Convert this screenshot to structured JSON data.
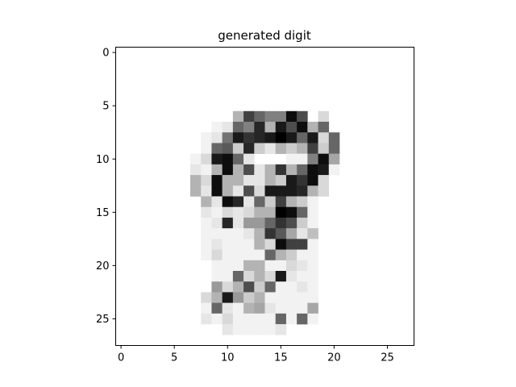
{
  "chart_data": {
    "type": "heatmap",
    "title": "generated digit",
    "xlabel": "",
    "ylabel": "",
    "colormap": "Greys",
    "value_range": [
      0,
      1
    ],
    "xlim": [
      -0.5,
      27.5
    ],
    "ylim": [
      27.5,
      -0.5
    ],
    "xticks": [
      0,
      5,
      10,
      15,
      20,
      25
    ],
    "yticks": [
      0,
      5,
      10,
      15,
      20,
      25
    ],
    "xtick_labels": [
      "0",
      "5",
      "10",
      "15",
      "20",
      "25"
    ],
    "ytick_labels": [
      "0",
      "5",
      "10",
      "15",
      "20",
      "25"
    ],
    "grid": false,
    "note_cells": "sparse matrix: each cell is [row, col, intensity]; all cells not listed are 0 (white)",
    "cells": [
      [
        6,
        11,
        0.3
      ],
      [
        6,
        12,
        0.75
      ],
      [
        6,
        13,
        0.6
      ],
      [
        6,
        14,
        0.5
      ],
      [
        6,
        15,
        0.5
      ],
      [
        6,
        16,
        0.95
      ],
      [
        6,
        17,
        0.7
      ],
      [
        6,
        19,
        0.15
      ],
      [
        7,
        9,
        0.05
      ],
      [
        7,
        10,
        0.1
      ],
      [
        7,
        11,
        0.6
      ],
      [
        7,
        12,
        0.5
      ],
      [
        7,
        13,
        0.85
      ],
      [
        7,
        14,
        0.3
      ],
      [
        7,
        15,
        0.9
      ],
      [
        7,
        16,
        0.7
      ],
      [
        7,
        17,
        0.95
      ],
      [
        7,
        18,
        0.3
      ],
      [
        7,
        19,
        0.6
      ],
      [
        8,
        8,
        0.05
      ],
      [
        8,
        9,
        0.1
      ],
      [
        8,
        10,
        0.55
      ],
      [
        8,
        11,
        0.9
      ],
      [
        8,
        12,
        0.8
      ],
      [
        8,
        13,
        0.85
      ],
      [
        8,
        14,
        0.9
      ],
      [
        8,
        15,
        1.0
      ],
      [
        8,
        16,
        0.9
      ],
      [
        8,
        17,
        0.6
      ],
      [
        8,
        18,
        0.9
      ],
      [
        8,
        19,
        0.15
      ],
      [
        8,
        20,
        0.6
      ],
      [
        9,
        8,
        0.05
      ],
      [
        9,
        9,
        0.6
      ],
      [
        9,
        10,
        0.65
      ],
      [
        9,
        11,
        0.2
      ],
      [
        9,
        12,
        0.85
      ],
      [
        9,
        13,
        0.2
      ],
      [
        9,
        14,
        0.1
      ],
      [
        9,
        15,
        0.3
      ],
      [
        9,
        16,
        0.2
      ],
      [
        9,
        17,
        0.3
      ],
      [
        9,
        18,
        0.75
      ],
      [
        9,
        19,
        0.2
      ],
      [
        9,
        20,
        0.6
      ],
      [
        10,
        7,
        0.05
      ],
      [
        10,
        8,
        0.15
      ],
      [
        10,
        9,
        0.9
      ],
      [
        10,
        10,
        0.95
      ],
      [
        10,
        11,
        0.6
      ],
      [
        10,
        12,
        0.1
      ],
      [
        10,
        16,
        0.05
      ],
      [
        10,
        17,
        0.05
      ],
      [
        10,
        18,
        0.5
      ],
      [
        10,
        19,
        0.95
      ],
      [
        10,
        20,
        0.35
      ],
      [
        11,
        7,
        0.1
      ],
      [
        11,
        8,
        0.05
      ],
      [
        11,
        9,
        0.3
      ],
      [
        11,
        10,
        0.95
      ],
      [
        11,
        11,
        0.3
      ],
      [
        11,
        12,
        0.7
      ],
      [
        11,
        13,
        0.1
      ],
      [
        11,
        14,
        0.3
      ],
      [
        11,
        15,
        0.8
      ],
      [
        11,
        16,
        0.3
      ],
      [
        11,
        17,
        0.6
      ],
      [
        11,
        18,
        0.95
      ],
      [
        11,
        19,
        0.9
      ],
      [
        11,
        20,
        0.05
      ],
      [
        12,
        7,
        0.3
      ],
      [
        12,
        8,
        0.15
      ],
      [
        12,
        9,
        0.95
      ],
      [
        12,
        10,
        0.3
      ],
      [
        12,
        11,
        0.3
      ],
      [
        12,
        12,
        0.1
      ],
      [
        12,
        13,
        0.1
      ],
      [
        12,
        14,
        0.3
      ],
      [
        12,
        15,
        0.2
      ],
      [
        12,
        16,
        0.9
      ],
      [
        12,
        17,
        0.8
      ],
      [
        12,
        18,
        0.95
      ],
      [
        12,
        19,
        0.15
      ],
      [
        13,
        7,
        0.3
      ],
      [
        13,
        8,
        0.1
      ],
      [
        13,
        9,
        0.95
      ],
      [
        13,
        10,
        0.3
      ],
      [
        13,
        11,
        0.1
      ],
      [
        13,
        12,
        0.7
      ],
      [
        13,
        13,
        0.15
      ],
      [
        13,
        14,
        0.9
      ],
      [
        13,
        15,
        0.9
      ],
      [
        13,
        16,
        0.9
      ],
      [
        13,
        17,
        0.85
      ],
      [
        13,
        18,
        0.3
      ],
      [
        13,
        19,
        0.15
      ],
      [
        14,
        8,
        0.3
      ],
      [
        14,
        9,
        0.1
      ],
      [
        14,
        10,
        0.95
      ],
      [
        14,
        11,
        0.85
      ],
      [
        14,
        12,
        0.1
      ],
      [
        14,
        13,
        0.6
      ],
      [
        14,
        14,
        0.2
      ],
      [
        14,
        15,
        0.75
      ],
      [
        14,
        16,
        0.3
      ],
      [
        14,
        17,
        0.2
      ],
      [
        14,
        18,
        0.05
      ],
      [
        15,
        8,
        0.1
      ],
      [
        15,
        9,
        0.05
      ],
      [
        15,
        10,
        0.15
      ],
      [
        15,
        11,
        0.1
      ],
      [
        15,
        12,
        0.15
      ],
      [
        15,
        13,
        0.3
      ],
      [
        15,
        14,
        0.3
      ],
      [
        15,
        15,
        1.0
      ],
      [
        15,
        16,
        0.95
      ],
      [
        15,
        17,
        0.6
      ],
      [
        15,
        18,
        0.05
      ],
      [
        16,
        8,
        0.05
      ],
      [
        16,
        9,
        0.1
      ],
      [
        16,
        10,
        0.85
      ],
      [
        16,
        11,
        0.1
      ],
      [
        16,
        12,
        0.4
      ],
      [
        16,
        13,
        0.4
      ],
      [
        16,
        14,
        0.6
      ],
      [
        16,
        15,
        0.8
      ],
      [
        16,
        16,
        0.7
      ],
      [
        16,
        17,
        0.2
      ],
      [
        16,
        18,
        0.05
      ],
      [
        17,
        8,
        0.05
      ],
      [
        17,
        9,
        0.05
      ],
      [
        17,
        10,
        0.05
      ],
      [
        17,
        11,
        0.05
      ],
      [
        17,
        12,
        0.1
      ],
      [
        17,
        13,
        0.3
      ],
      [
        17,
        14,
        0.8
      ],
      [
        17,
        15,
        0.65
      ],
      [
        17,
        16,
        0.35
      ],
      [
        17,
        17,
        0.1
      ],
      [
        17,
        18,
        0.25
      ],
      [
        18,
        8,
        0.05
      ],
      [
        18,
        9,
        0.1
      ],
      [
        18,
        10,
        0.05
      ],
      [
        18,
        11,
        0.05
      ],
      [
        18,
        12,
        0.05
      ],
      [
        18,
        13,
        0.3
      ],
      [
        18,
        14,
        0.15
      ],
      [
        18,
        15,
        0.95
      ],
      [
        18,
        16,
        0.75
      ],
      [
        18,
        17,
        0.75
      ],
      [
        18,
        18,
        0.05
      ],
      [
        19,
        8,
        0.05
      ],
      [
        19,
        9,
        0.15
      ],
      [
        19,
        10,
        0.05
      ],
      [
        19,
        11,
        0.05
      ],
      [
        19,
        12,
        0.05
      ],
      [
        19,
        13,
        0.05
      ],
      [
        19,
        14,
        0.6
      ],
      [
        19,
        15,
        0.3
      ],
      [
        19,
        16,
        0.2
      ],
      [
        19,
        17,
        0.05
      ],
      [
        19,
        18,
        0.05
      ],
      [
        20,
        9,
        0.05
      ],
      [
        20,
        10,
        0.05
      ],
      [
        20,
        11,
        0.05
      ],
      [
        20,
        12,
        0.3
      ],
      [
        20,
        13,
        0.3
      ],
      [
        20,
        14,
        0.05
      ],
      [
        20,
        15,
        0.05
      ],
      [
        20,
        16,
        0.15
      ],
      [
        20,
        17,
        0.1
      ],
      [
        20,
        18,
        0.05
      ],
      [
        21,
        9,
        0.05
      ],
      [
        21,
        10,
        0.05
      ],
      [
        21,
        11,
        0.6
      ],
      [
        21,
        12,
        0.15
      ],
      [
        21,
        13,
        0.3
      ],
      [
        21,
        14,
        0.15
      ],
      [
        21,
        15,
        0.9
      ],
      [
        21,
        16,
        0.1
      ],
      [
        21,
        17,
        0.05
      ],
      [
        21,
        18,
        0.05
      ],
      [
        22,
        9,
        0.4
      ],
      [
        22,
        10,
        0.15
      ],
      [
        22,
        11,
        0.3
      ],
      [
        22,
        12,
        0.7
      ],
      [
        22,
        13,
        0.2
      ],
      [
        22,
        14,
        0.6
      ],
      [
        22,
        15,
        0.05
      ],
      [
        22,
        16,
        0.05
      ],
      [
        22,
        17,
        0.1
      ],
      [
        22,
        18,
        0.05
      ],
      [
        23,
        8,
        0.15
      ],
      [
        23,
        9,
        0.3
      ],
      [
        23,
        10,
        0.9
      ],
      [
        23,
        11,
        0.4
      ],
      [
        23,
        12,
        0.2
      ],
      [
        23,
        13,
        0.3
      ],
      [
        23,
        14,
        0.05
      ],
      [
        23,
        15,
        0.05
      ],
      [
        23,
        16,
        0.05
      ],
      [
        23,
        17,
        0.05
      ],
      [
        23,
        18,
        0.05
      ],
      [
        24,
        8,
        0.05
      ],
      [
        24,
        9,
        0.6
      ],
      [
        24,
        10,
        0.1
      ],
      [
        24,
        11,
        0.05
      ],
      [
        24,
        12,
        0.3
      ],
      [
        24,
        13,
        0.35
      ],
      [
        24,
        14,
        0.1
      ],
      [
        24,
        15,
        0.05
      ],
      [
        24,
        16,
        0.05
      ],
      [
        24,
        17,
        0.05
      ],
      [
        24,
        18,
        0.35
      ],
      [
        25,
        8,
        0.1
      ],
      [
        25,
        9,
        0.05
      ],
      [
        25,
        10,
        0.15
      ],
      [
        25,
        11,
        0.05
      ],
      [
        25,
        12,
        0.05
      ],
      [
        25,
        13,
        0.05
      ],
      [
        25,
        14,
        0.05
      ],
      [
        25,
        15,
        0.6
      ],
      [
        25,
        16,
        0.05
      ],
      [
        25,
        17,
        0.6
      ],
      [
        25,
        18,
        0.05
      ],
      [
        26,
        10,
        0.1
      ],
      [
        26,
        11,
        0.05
      ],
      [
        26,
        12,
        0.05
      ],
      [
        26,
        13,
        0.05
      ],
      [
        26,
        14,
        0.05
      ],
      [
        26,
        15,
        0.1
      ]
    ]
  }
}
